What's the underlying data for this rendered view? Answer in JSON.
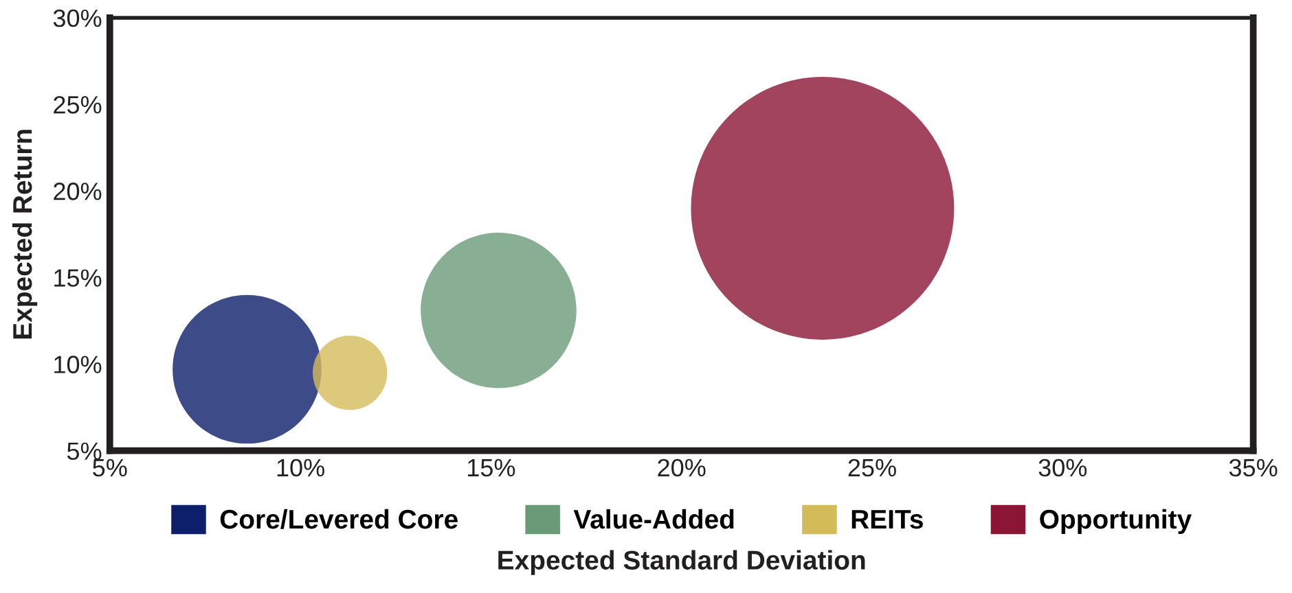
{
  "chart_data": {
    "type": "bubble",
    "xlabel": "Expected Standard Deviation",
    "ylabel": "Expected Return",
    "series": [
      {
        "name": "Core/Levered Core",
        "color": "#0d1f6b",
        "x": [
          8.6
        ],
        "values": [
          9.7
        ],
        "sizes": [
          0.32
        ]
      },
      {
        "name": "Value-Added",
        "color": "#6a9a78",
        "x": [
          15.2
        ],
        "values": [
          13.1
        ],
        "sizes": [
          0.35
        ]
      },
      {
        "name": "REITs",
        "color": "#d4bb5a",
        "x": [
          11.3
        ],
        "values": [
          9.5
        ],
        "sizes": [
          0.08
        ]
      },
      {
        "name": "Opportunity",
        "color": "#8b1535",
        "x": [
          23.7
        ],
        "values": [
          19.0
        ],
        "sizes": [
          1
        ]
      }
    ],
    "xlim": [
      5,
      35
    ],
    "xticks": [
      {
        "value": 5,
        "label": "5%"
      },
      {
        "value": 10,
        "label": "10%"
      },
      {
        "value": 15,
        "label": "15%"
      },
      {
        "value": 20,
        "label": "20%"
      },
      {
        "value": 25,
        "label": "25%"
      },
      {
        "value": 30,
        "label": "30%"
      },
      {
        "value": 35,
        "label": "35%"
      }
    ],
    "ylim": [
      5,
      30
    ],
    "yticks": [
      {
        "value": 5,
        "label": "5%"
      },
      {
        "value": 10,
        "label": "10%"
      },
      {
        "value": 15,
        "label": "15%"
      },
      {
        "value": 20,
        "label": "20%"
      },
      {
        "value": 25,
        "label": "25%"
      },
      {
        "value": 30,
        "label": "30%"
      }
    ],
    "grid": false,
    "legend": "bottom"
  }
}
